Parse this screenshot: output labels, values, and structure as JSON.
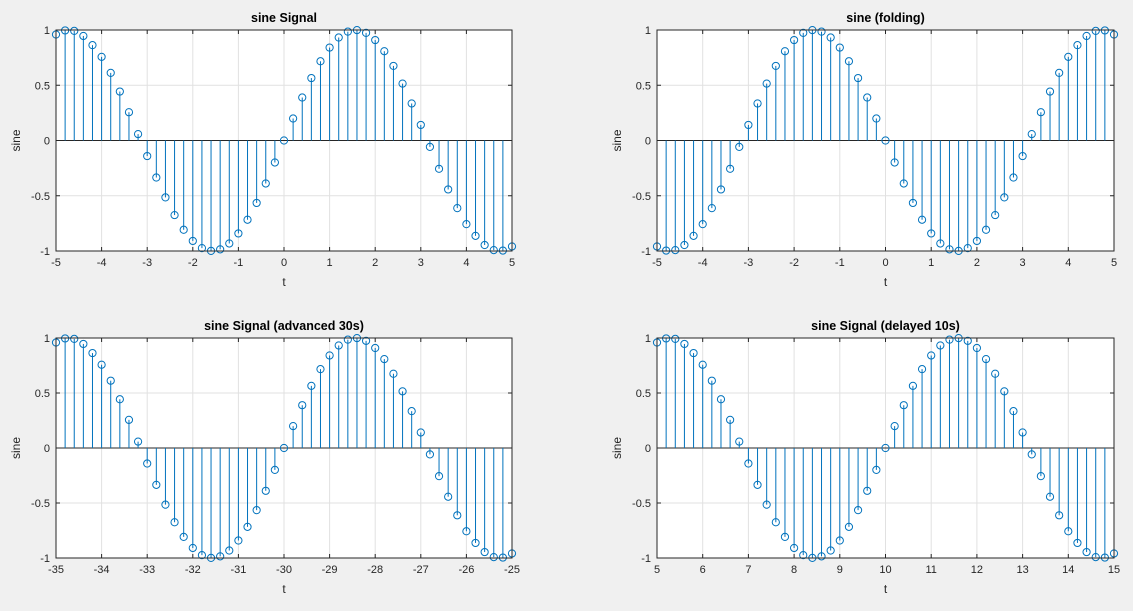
{
  "figure": {
    "background": "#f0f0f0",
    "stem_color": "#0072bd",
    "grid_color": "#e1e1e1"
  },
  "chart_data": [
    {
      "type": "stem",
      "title": "sine Signal",
      "xlabel": "t",
      "ylabel": "sine",
      "xlim": [
        -5,
        5
      ],
      "ylim": [
        -1,
        1
      ],
      "xticks": [
        -5,
        -4,
        -3,
        -2,
        -1,
        0,
        1,
        2,
        3,
        4,
        5
      ],
      "yticks": [
        -1,
        -0.5,
        0,
        0.5,
        1
      ],
      "grid": true,
      "baseline": 0,
      "x_start": -5,
      "x_step": 0.2,
      "values": [
        0.959,
        0.996,
        0.992,
        0.946,
        0.863,
        0.757,
        0.612,
        0.443,
        0.256,
        0.058,
        -0.141,
        -0.335,
        -0.515,
        -0.675,
        -0.808,
        -0.909,
        -0.974,
        -0.999,
        -0.985,
        -0.932,
        -0.841,
        -0.717,
        -0.565,
        -0.389,
        -0.199,
        0.0,
        0.199,
        0.389,
        0.565,
        0.717,
        0.841,
        0.932,
        0.985,
        0.999,
        0.974,
        0.909,
        0.808,
        0.675,
        0.515,
        0.335,
        0.141,
        -0.058,
        -0.256,
        -0.443,
        -0.612,
        -0.757,
        -0.863,
        -0.946,
        -0.992,
        -0.996,
        -0.959
      ]
    },
    {
      "type": "stem",
      "title": "sine (folding)",
      "xlabel": "t",
      "ylabel": "sine",
      "xlim": [
        -5,
        5
      ],
      "ylim": [
        -1,
        1
      ],
      "xticks": [
        -5,
        -4,
        -3,
        -2,
        -1,
        0,
        1,
        2,
        3,
        4,
        5
      ],
      "yticks": [
        -1,
        -0.5,
        0,
        0.5,
        1
      ],
      "grid": true,
      "baseline": 0,
      "x_start": -5,
      "x_step": 0.2,
      "values": [
        -0.959,
        -0.996,
        -0.992,
        -0.946,
        -0.863,
        -0.757,
        -0.612,
        -0.443,
        -0.256,
        -0.058,
        0.141,
        0.335,
        0.515,
        0.675,
        0.808,
        0.909,
        0.974,
        0.999,
        0.985,
        0.932,
        0.841,
        0.717,
        0.565,
        0.389,
        0.199,
        0.0,
        -0.199,
        -0.389,
        -0.565,
        -0.717,
        -0.841,
        -0.932,
        -0.985,
        -0.999,
        -0.974,
        -0.909,
        -0.808,
        -0.675,
        -0.515,
        -0.335,
        -0.141,
        0.058,
        0.256,
        0.443,
        0.612,
        0.757,
        0.863,
        0.946,
        0.992,
        0.996,
        0.959
      ]
    },
    {
      "type": "stem",
      "title": "sine Signal (advanced 30s)",
      "xlabel": "t",
      "ylabel": "sine",
      "xlim": [
        -35,
        -25
      ],
      "ylim": [
        -1,
        1
      ],
      "xticks": [
        -35,
        -34,
        -33,
        -32,
        -31,
        -30,
        -29,
        -28,
        -27,
        -26,
        -25
      ],
      "yticks": [
        -1,
        -0.5,
        0,
        0.5,
        1
      ],
      "grid": true,
      "baseline": 0,
      "x_start": -35,
      "x_step": 0.2,
      "values": [
        0.959,
        0.996,
        0.992,
        0.946,
        0.863,
        0.757,
        0.612,
        0.443,
        0.256,
        0.058,
        -0.141,
        -0.335,
        -0.515,
        -0.675,
        -0.808,
        -0.909,
        -0.974,
        -0.999,
        -0.985,
        -0.932,
        -0.841,
        -0.717,
        -0.565,
        -0.389,
        -0.199,
        0.0,
        0.199,
        0.389,
        0.565,
        0.717,
        0.841,
        0.932,
        0.985,
        0.999,
        0.974,
        0.909,
        0.808,
        0.675,
        0.515,
        0.335,
        0.141,
        -0.058,
        -0.256,
        -0.443,
        -0.612,
        -0.757,
        -0.863,
        -0.946,
        -0.992,
        -0.996,
        -0.959
      ]
    },
    {
      "type": "stem",
      "title": "sine Signal (delayed 10s)",
      "xlabel": "t",
      "ylabel": "sine",
      "xlim": [
        5,
        15
      ],
      "ylim": [
        -1,
        1
      ],
      "xticks": [
        5,
        6,
        7,
        8,
        9,
        10,
        11,
        12,
        13,
        14,
        15
      ],
      "yticks": [
        -1,
        -0.5,
        0,
        0.5,
        1
      ],
      "grid": true,
      "baseline": 0,
      "x_start": 5,
      "x_step": 0.2,
      "values": [
        0.959,
        0.996,
        0.992,
        0.946,
        0.863,
        0.757,
        0.612,
        0.443,
        0.256,
        0.058,
        -0.141,
        -0.335,
        -0.515,
        -0.675,
        -0.808,
        -0.909,
        -0.974,
        -0.999,
        -0.985,
        -0.932,
        -0.841,
        -0.717,
        -0.565,
        -0.389,
        -0.199,
        0.0,
        0.199,
        0.389,
        0.565,
        0.717,
        0.841,
        0.932,
        0.985,
        0.999,
        0.974,
        0.909,
        0.808,
        0.675,
        0.515,
        0.335,
        0.141,
        -0.058,
        -0.256,
        -0.443,
        -0.612,
        -0.757,
        -0.863,
        -0.946,
        -0.992,
        -0.996,
        -0.959
      ]
    }
  ]
}
